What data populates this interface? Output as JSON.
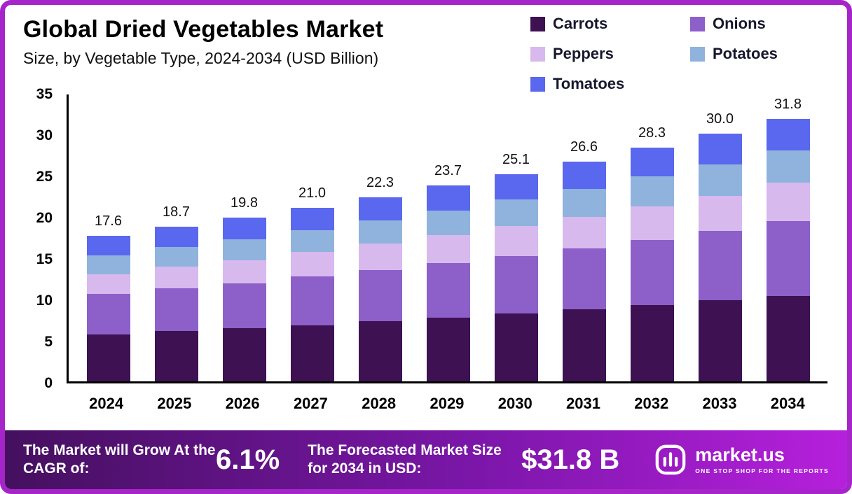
{
  "title": "Global Dried Vegetables Market",
  "subtitle": "Size, by Vegetable Type, 2024-2034 (USD Billion)",
  "chart_data": {
    "type": "bar",
    "stacked": true,
    "title": "Global Dried Vegetables Market Size, by Vegetable Type, 2024-2034 (USD Billion)",
    "xlabel": "",
    "ylabel": "",
    "ylim": [
      0,
      35
    ],
    "yticks": [
      0,
      5,
      10,
      15,
      20,
      25,
      30,
      35
    ],
    "grid": false,
    "legend_position": "top-right",
    "categories": [
      "2024",
      "2025",
      "2026",
      "2027",
      "2028",
      "2029",
      "2030",
      "2031",
      "2032",
      "2033",
      "2034"
    ],
    "series": [
      {
        "name": "Carrots",
        "color": "#3d1152",
        "values": [
          5.7,
          6.1,
          6.4,
          6.8,
          7.3,
          7.7,
          8.2,
          8.7,
          9.2,
          9.8,
          10.3
        ]
      },
      {
        "name": "Onions",
        "color": "#8d5fc9",
        "values": [
          4.9,
          5.2,
          5.5,
          5.9,
          6.2,
          6.6,
          7.0,
          7.4,
          7.9,
          8.4,
          9.1
        ]
      },
      {
        "name": "Peppers",
        "color": "#d7b9ee",
        "values": [
          2.4,
          2.6,
          2.8,
          3.0,
          3.2,
          3.4,
          3.6,
          3.8,
          4.1,
          4.3,
          4.7
        ]
      },
      {
        "name": "Potatoes",
        "color": "#8fb3dc",
        "values": [
          2.3,
          2.4,
          2.5,
          2.6,
          2.8,
          3.0,
          3.2,
          3.4,
          3.6,
          3.8,
          3.9
        ]
      },
      {
        "name": "Tomatoes",
        "color": "#5a67ef",
        "values": [
          2.3,
          2.4,
          2.6,
          2.7,
          2.8,
          3.0,
          3.1,
          3.3,
          3.5,
          3.7,
          3.8
        ]
      }
    ],
    "totals": [
      17.6,
      18.7,
      19.8,
      21.0,
      22.3,
      23.7,
      25.1,
      26.6,
      28.3,
      30.0,
      31.8
    ]
  },
  "footer": {
    "cagr_label": "The Market will Grow At the CAGR of:",
    "cagr_value": "6.1%",
    "forecast_label": "The Forecasted Market Size for 2034 in USD:",
    "forecast_value": "$31.8 B",
    "brand_name": "market.us",
    "brand_tagline": "ONE STOP SHOP FOR THE REPORTS"
  }
}
